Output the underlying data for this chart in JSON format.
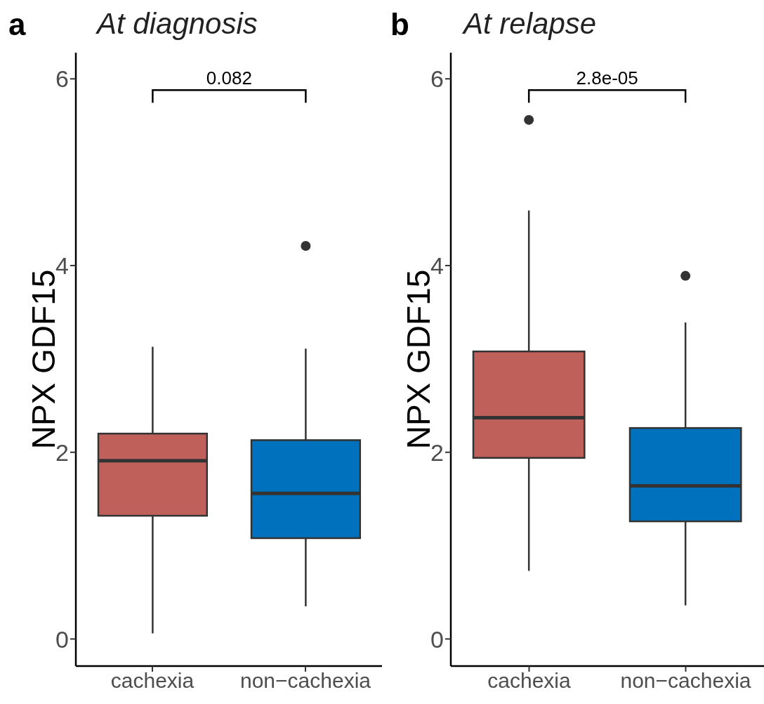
{
  "chart_data": [
    {
      "type": "box",
      "title": "At diagnosis",
      "ylabel": "NPX GDF15",
      "categories": [
        "cachexia",
        "non−cachexia"
      ],
      "colors": [
        "#c0605a",
        "#0072bd"
      ],
      "ylim": [
        -0.29,
        6.28
      ],
      "yticks": [
        0,
        2,
        4,
        6
      ],
      "boxes": [
        {
          "low": 0.06,
          "q1": 1.32,
          "median": 1.91,
          "q3": 2.2,
          "high": 3.13
        },
        {
          "low": 0.35,
          "q1": 1.08,
          "median": 1.56,
          "q3": 2.13,
          "high": 3.11,
          "outliers": [
            4.21
          ]
        }
      ],
      "annotations": [
        "a",
        "0.082"
      ]
    },
    {
      "type": "box",
      "title": "At relapse",
      "ylabel": "NPX GDF15",
      "categories": [
        "cachexia",
        "non−cachexia"
      ],
      "colors": [
        "#c0605a",
        "#0072bd"
      ],
      "ylim": [
        -0.29,
        6.28
      ],
      "yticks": [
        0,
        2,
        4,
        6
      ],
      "boxes": [
        {
          "low": 0.73,
          "q1": 1.94,
          "median": 2.37,
          "q3": 3.08,
          "high": 4.59,
          "outliers": [
            5.56
          ]
        },
        {
          "low": 0.36,
          "q1": 1.26,
          "median": 1.64,
          "q3": 2.26,
          "high": 3.39,
          "outliers": [
            3.89
          ]
        }
      ],
      "annotations": [
        "b",
        "2.8e-05"
      ]
    }
  ]
}
